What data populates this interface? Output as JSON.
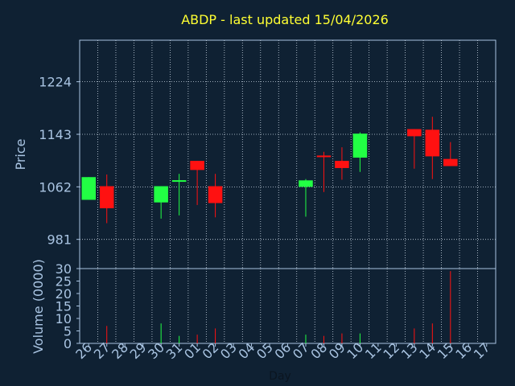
{
  "chart_data": [
    {
      "type": "candlestick",
      "title": "ABDP - last updated 15/04/2026",
      "ylabel": "Price",
      "ylim": [
        936,
        1288
      ],
      "yticks": [
        981,
        1062,
        1143,
        1224
      ],
      "grid": true,
      "categories": [
        "26",
        "27",
        "28",
        "29",
        "30",
        "31",
        "01",
        "02",
        "03",
        "04",
        "05",
        "06",
        "07",
        "08",
        "09",
        "10",
        "11",
        "12",
        "13",
        "14",
        "15",
        "16",
        "17"
      ],
      "candles": [
        {
          "x": "26",
          "open": 1042,
          "close": 1077,
          "high": 1077,
          "low": 1042
        },
        {
          "x": "27",
          "open": 1063,
          "close": 1029,
          "high": 1081,
          "low": 1006
        },
        {
          "x": "30",
          "open": 1038,
          "close": 1063,
          "high": 1063,
          "low": 1013
        },
        {
          "x": "31",
          "open": 1070,
          "close": 1071,
          "high": 1082,
          "low": 1018
        },
        {
          "x": "01",
          "open": 1102,
          "close": 1088,
          "high": 1102,
          "low": 1034
        },
        {
          "x": "02",
          "open": 1063,
          "close": 1037,
          "high": 1082,
          "low": 1015
        },
        {
          "x": "07",
          "open": 1062,
          "close": 1072,
          "high": 1074,
          "low": 1016
        },
        {
          "x": "08",
          "open": 1109,
          "close": 1107,
          "high": 1116,
          "low": 1054
        },
        {
          "x": "09",
          "open": 1102,
          "close": 1091,
          "high": 1123,
          "low": 1073
        },
        {
          "x": "10",
          "open": 1107,
          "close": 1144,
          "high": 1146,
          "low": 1085
        },
        {
          "x": "13",
          "open": 1151,
          "close": 1140,
          "high": 1151,
          "low": 1090
        },
        {
          "x": "14",
          "open": 1150,
          "close": 1109,
          "high": 1170,
          "low": 1074
        },
        {
          "x": "15",
          "open": 1105,
          "close": 1094,
          "high": 1131,
          "low": 1094
        }
      ],
      "colors": {
        "up": "#22ff44",
        "down": "#ff1111",
        "grid": "#c9d6e3",
        "axis": "#a9c4e2",
        "background": "#0f2133"
      }
    },
    {
      "type": "bar",
      "ylabel": "Volume (0000)",
      "xlabel": "Day",
      "ylim": [
        0,
        30
      ],
      "yticks": [
        0,
        5,
        10,
        15,
        20,
        25,
        30
      ],
      "categories": [
        "26",
        "27",
        "28",
        "29",
        "30",
        "31",
        "01",
        "02",
        "03",
        "04",
        "05",
        "06",
        "07",
        "08",
        "09",
        "10",
        "11",
        "12",
        "13",
        "14",
        "15",
        "16",
        "17"
      ],
      "values": [
        {
          "x": "27",
          "value": 7,
          "direction": "down"
        },
        {
          "x": "30",
          "value": 8,
          "direction": "up"
        },
        {
          "x": "31",
          "value": 3,
          "direction": "up"
        },
        {
          "x": "01",
          "value": 3.5,
          "direction": "down"
        },
        {
          "x": "02",
          "value": 6,
          "direction": "down"
        },
        {
          "x": "07",
          "value": 3.5,
          "direction": "up"
        },
        {
          "x": "08",
          "value": 3,
          "direction": "down"
        },
        {
          "x": "09",
          "value": 4,
          "direction": "down"
        },
        {
          "x": "10",
          "value": 4,
          "direction": "up"
        },
        {
          "x": "13",
          "value": 6,
          "direction": "down"
        },
        {
          "x": "14",
          "value": 8,
          "direction": "down"
        },
        {
          "x": "15",
          "value": 29,
          "direction": "down"
        }
      ]
    }
  ]
}
